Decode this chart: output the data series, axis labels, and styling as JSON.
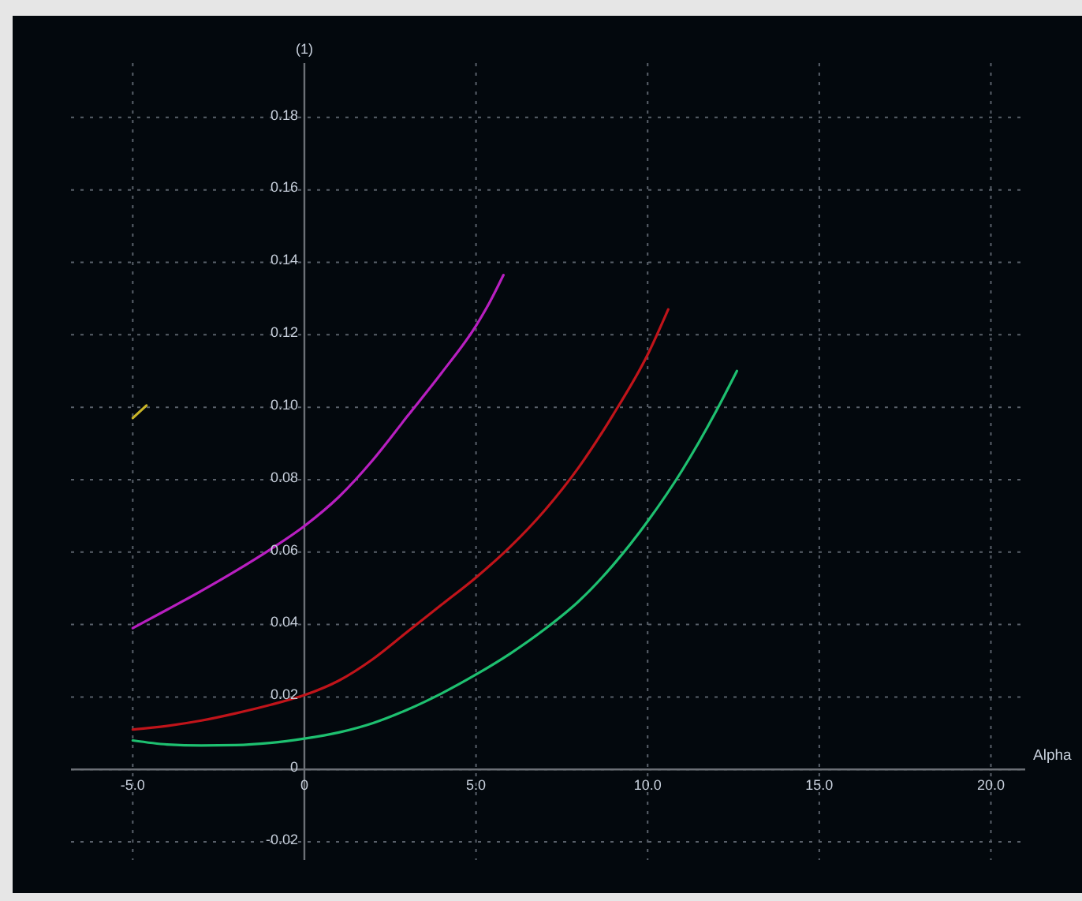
{
  "chart_data": {
    "type": "line",
    "xlabel": "Alpha",
    "ylabel": "(1)",
    "xlim": [
      -6.8,
      21
    ],
    "ylim": [
      -0.025,
      0.195
    ],
    "xticks": [
      {
        "value": -5,
        "label": "-5.0"
      },
      0,
      {
        "value": 5,
        "label": "5.0"
      },
      {
        "value": 10,
        "label": "10.0"
      },
      {
        "value": 15,
        "label": "15.0"
      },
      {
        "value": 20,
        "label": "20.0"
      }
    ],
    "yticks": [
      -0.02,
      0,
      0.02,
      0.04,
      0.06,
      0.08,
      {
        "value": 0.1,
        "label": "0.10"
      },
      0.12,
      0.14,
      0.16,
      0.18
    ],
    "grid": true,
    "line_style": "solid",
    "series": [
      {
        "color": "#b81fc0",
        "x": [
          -5,
          -4,
          -3,
          -2,
          -1,
          0,
          1,
          2,
          3,
          4,
          5,
          5.4,
          5.8
        ],
        "values": [
          0.039,
          0.0441,
          0.0493,
          0.0548,
          0.0607,
          0.0672,
          0.0752,
          0.0855,
          0.0975,
          0.1095,
          0.1225,
          0.129,
          0.1365
        ]
      },
      {
        "color": "#c0141a",
        "x": [
          -5,
          -4,
          -3,
          -2,
          -1,
          0,
          1,
          2,
          3,
          4,
          5,
          6,
          7,
          8,
          9,
          10,
          10.6
        ],
        "values": [
          0.011,
          0.012,
          0.0135,
          0.0155,
          0.0178,
          0.0205,
          0.0245,
          0.0305,
          0.038,
          0.0455,
          0.053,
          0.0615,
          0.0715,
          0.0835,
          0.098,
          0.1145,
          0.127
        ]
      },
      {
        "color": "#1ec070",
        "x": [
          -5,
          -4,
          -3,
          -2,
          -1,
          0,
          1,
          2,
          3,
          4,
          5,
          6,
          7,
          8,
          9,
          10,
          11,
          12,
          12.6
        ],
        "values": [
          0.008,
          0.0069,
          0.0066,
          0.0067,
          0.0073,
          0.0085,
          0.0102,
          0.0128,
          0.0165,
          0.021,
          0.0262,
          0.032,
          0.0387,
          0.0465,
          0.0565,
          0.0685,
          0.0825,
          0.099,
          0.11
        ]
      },
      {
        "color": "#c8b428",
        "x": [
          -5,
          -4.6
        ],
        "values": [
          0.097,
          0.1005
        ]
      }
    ]
  }
}
